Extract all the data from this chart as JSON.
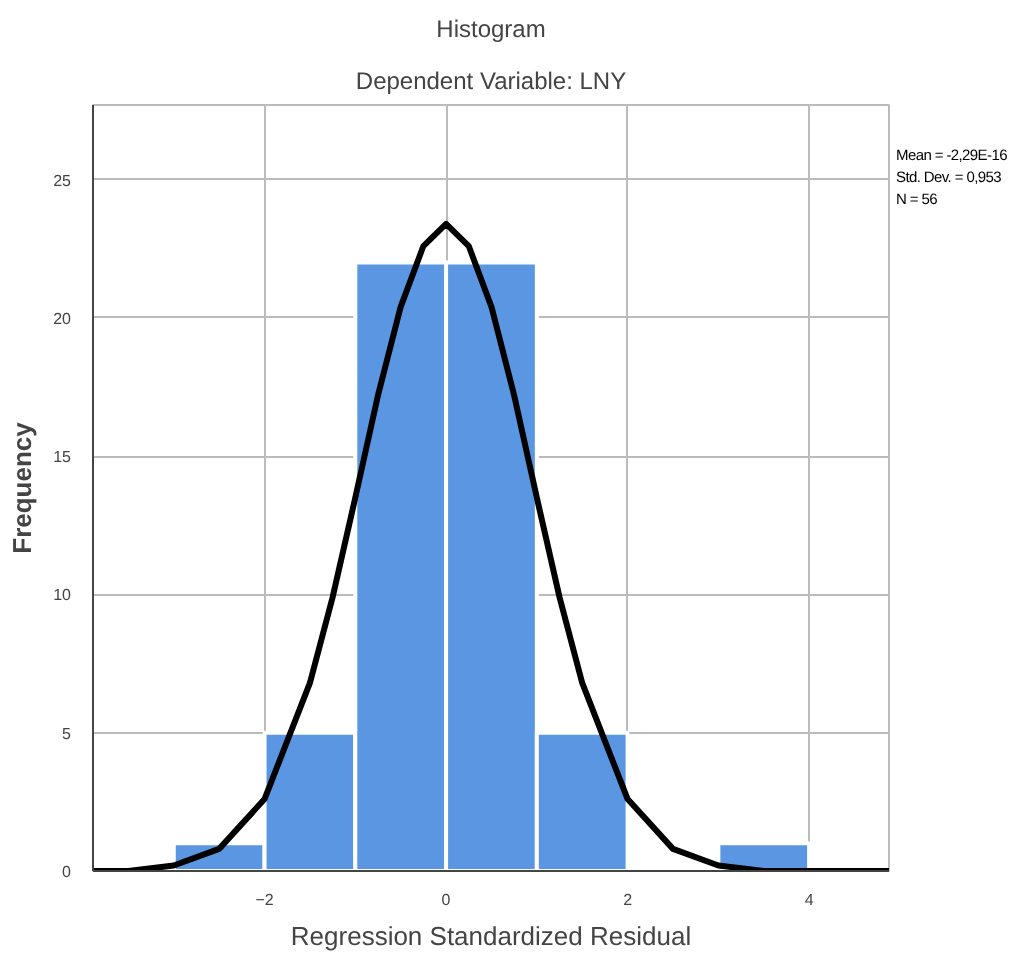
{
  "chart_data": {
    "type": "histogram",
    "title": "Histogram",
    "subtitle": "Dependent Variable: LNY",
    "xlabel": "Regression Standardized Residual",
    "ylabel": "Frequency",
    "bins": [
      -3,
      -2,
      -1,
      0,
      1,
      2,
      3,
      4
    ],
    "values": [
      1,
      5,
      22,
      22,
      5,
      0,
      1
    ],
    "color": "#5b96e3",
    "series": [
      {
        "type": "line",
        "color": "#000000",
        "x": [
          -3.89,
          -3.5,
          -3,
          -2.5,
          -2,
          -1.5,
          -1.25,
          -1,
          -0.75,
          -0.5,
          -0.25,
          0,
          0.25,
          0.5,
          0.75,
          1,
          1.25,
          1.5,
          2,
          2.5,
          3,
          3.5,
          4,
          4.5,
          4.88
        ],
        "values": [
          0,
          0,
          0.2,
          0.8,
          2.6,
          6.8,
          9.9,
          13.5,
          17.2,
          20.4,
          22.6,
          23.4,
          22.6,
          20.4,
          17.2,
          13.5,
          9.9,
          6.8,
          2.6,
          0.8,
          0.2,
          0,
          0,
          0,
          0
        ]
      }
    ],
    "xlim": [
      -3.89,
      4.88
    ],
    "ylim": [
      0,
      27.7
    ],
    "xticks": [
      -2,
      0,
      2,
      4
    ],
    "yticks": [
      0,
      5,
      10,
      15,
      20,
      25
    ],
    "grid": true,
    "annotations": [
      "Mean = -2,29E-16",
      "Std. Dev. = 0,953",
      "N = 56"
    ]
  }
}
